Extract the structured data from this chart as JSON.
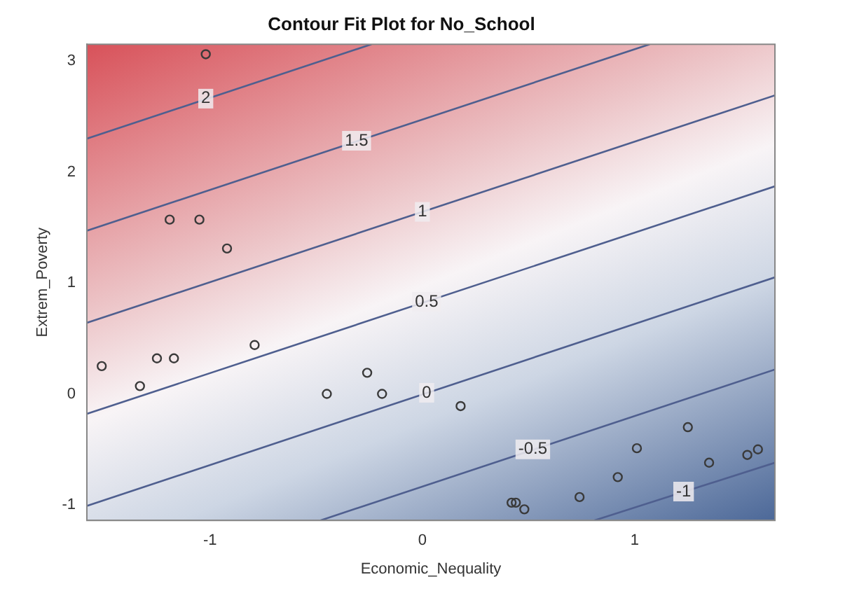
{
  "chart_data": {
    "type": "scatter",
    "title": "Contour Fit Plot for No_School",
    "xlabel": "Economic_Nequality",
    "ylabel": "Extrem_Poverty",
    "xlim": [
      -1.58,
      1.66
    ],
    "ylim": [
      -1.14,
      3.15
    ],
    "xticks": [
      -1,
      0,
      1
    ],
    "yticks": [
      -1,
      0,
      1,
      2,
      3
    ],
    "grid": false,
    "legend": false,
    "marker": "circle",
    "series": [
      {
        "type": "line",
        "marker": "none",
        "color": "#4f5f8f",
        "x": [
          -1.58,
          -0.24
        ],
        "values": [
          2.3,
          3.15
        ]
      },
      {
        "type": "line",
        "marker": "none",
        "color": "#4f5f8f",
        "x": [
          -1.58,
          1.07
        ],
        "values": [
          1.47,
          3.15
        ]
      },
      {
        "type": "line",
        "marker": "none",
        "color": "#4f5f8f",
        "x": [
          -1.58,
          1.66
        ],
        "values": [
          0.64,
          2.69
        ]
      },
      {
        "type": "line",
        "marker": "none",
        "color": "#4f5f8f",
        "x": [
          -1.58,
          1.66
        ],
        "values": [
          -0.18,
          1.87
        ]
      },
      {
        "type": "line",
        "marker": "none",
        "color": "#4f5f8f",
        "x": [
          -1.58,
          1.66
        ],
        "values": [
          -1.01,
          1.05
        ]
      },
      {
        "type": "line",
        "marker": "none",
        "color": "#4f5f8f",
        "x": [
          -0.48,
          1.66
        ],
        "values": [
          -1.14,
          0.22
        ]
      },
      {
        "type": "line",
        "marker": "none",
        "color": "#4f5f8f",
        "x": [
          0.81,
          1.66
        ],
        "values": [
          -1.14,
          -0.62
        ]
      },
      {
        "color": "#3a3a3a",
        "x": [
          -1.02,
          -1.19,
          -1.05,
          -0.92,
          -1.51,
          -1.33,
          -1.25,
          -1.17,
          -0.79,
          -0.45,
          -0.26,
          -0.19,
          0.18,
          0.42,
          0.44,
          0.48,
          0.74,
          0.92,
          1.01,
          1.25,
          1.35,
          1.53,
          1.58
        ],
        "values": [
          3.06,
          1.57,
          1.57,
          1.31,
          0.25,
          0.07,
          0.32,
          0.32,
          0.44,
          0.0,
          0.19,
          0.0,
          -0.11,
          -0.98,
          -0.98,
          -1.04,
          -0.93,
          -0.75,
          -0.49,
          -0.3,
          -0.62,
          -0.55,
          -0.5
        ]
      }
    ],
    "annotations": [
      {
        "text": "2",
        "x": -1.02,
        "y": 2.66
      },
      {
        "text": "1.5",
        "x": -0.31,
        "y": 2.28
      },
      {
        "text": "1",
        "x": 0.0,
        "y": 1.64
      },
      {
        "text": "0.5",
        "x": 0.02,
        "y": 0.83
      },
      {
        "text": "0",
        "x": 0.02,
        "y": 0.01
      },
      {
        "text": "-0.5",
        "x": 0.52,
        "y": -0.5
      },
      {
        "text": "-1",
        "x": 1.23,
        "y": -0.88
      }
    ]
  }
}
